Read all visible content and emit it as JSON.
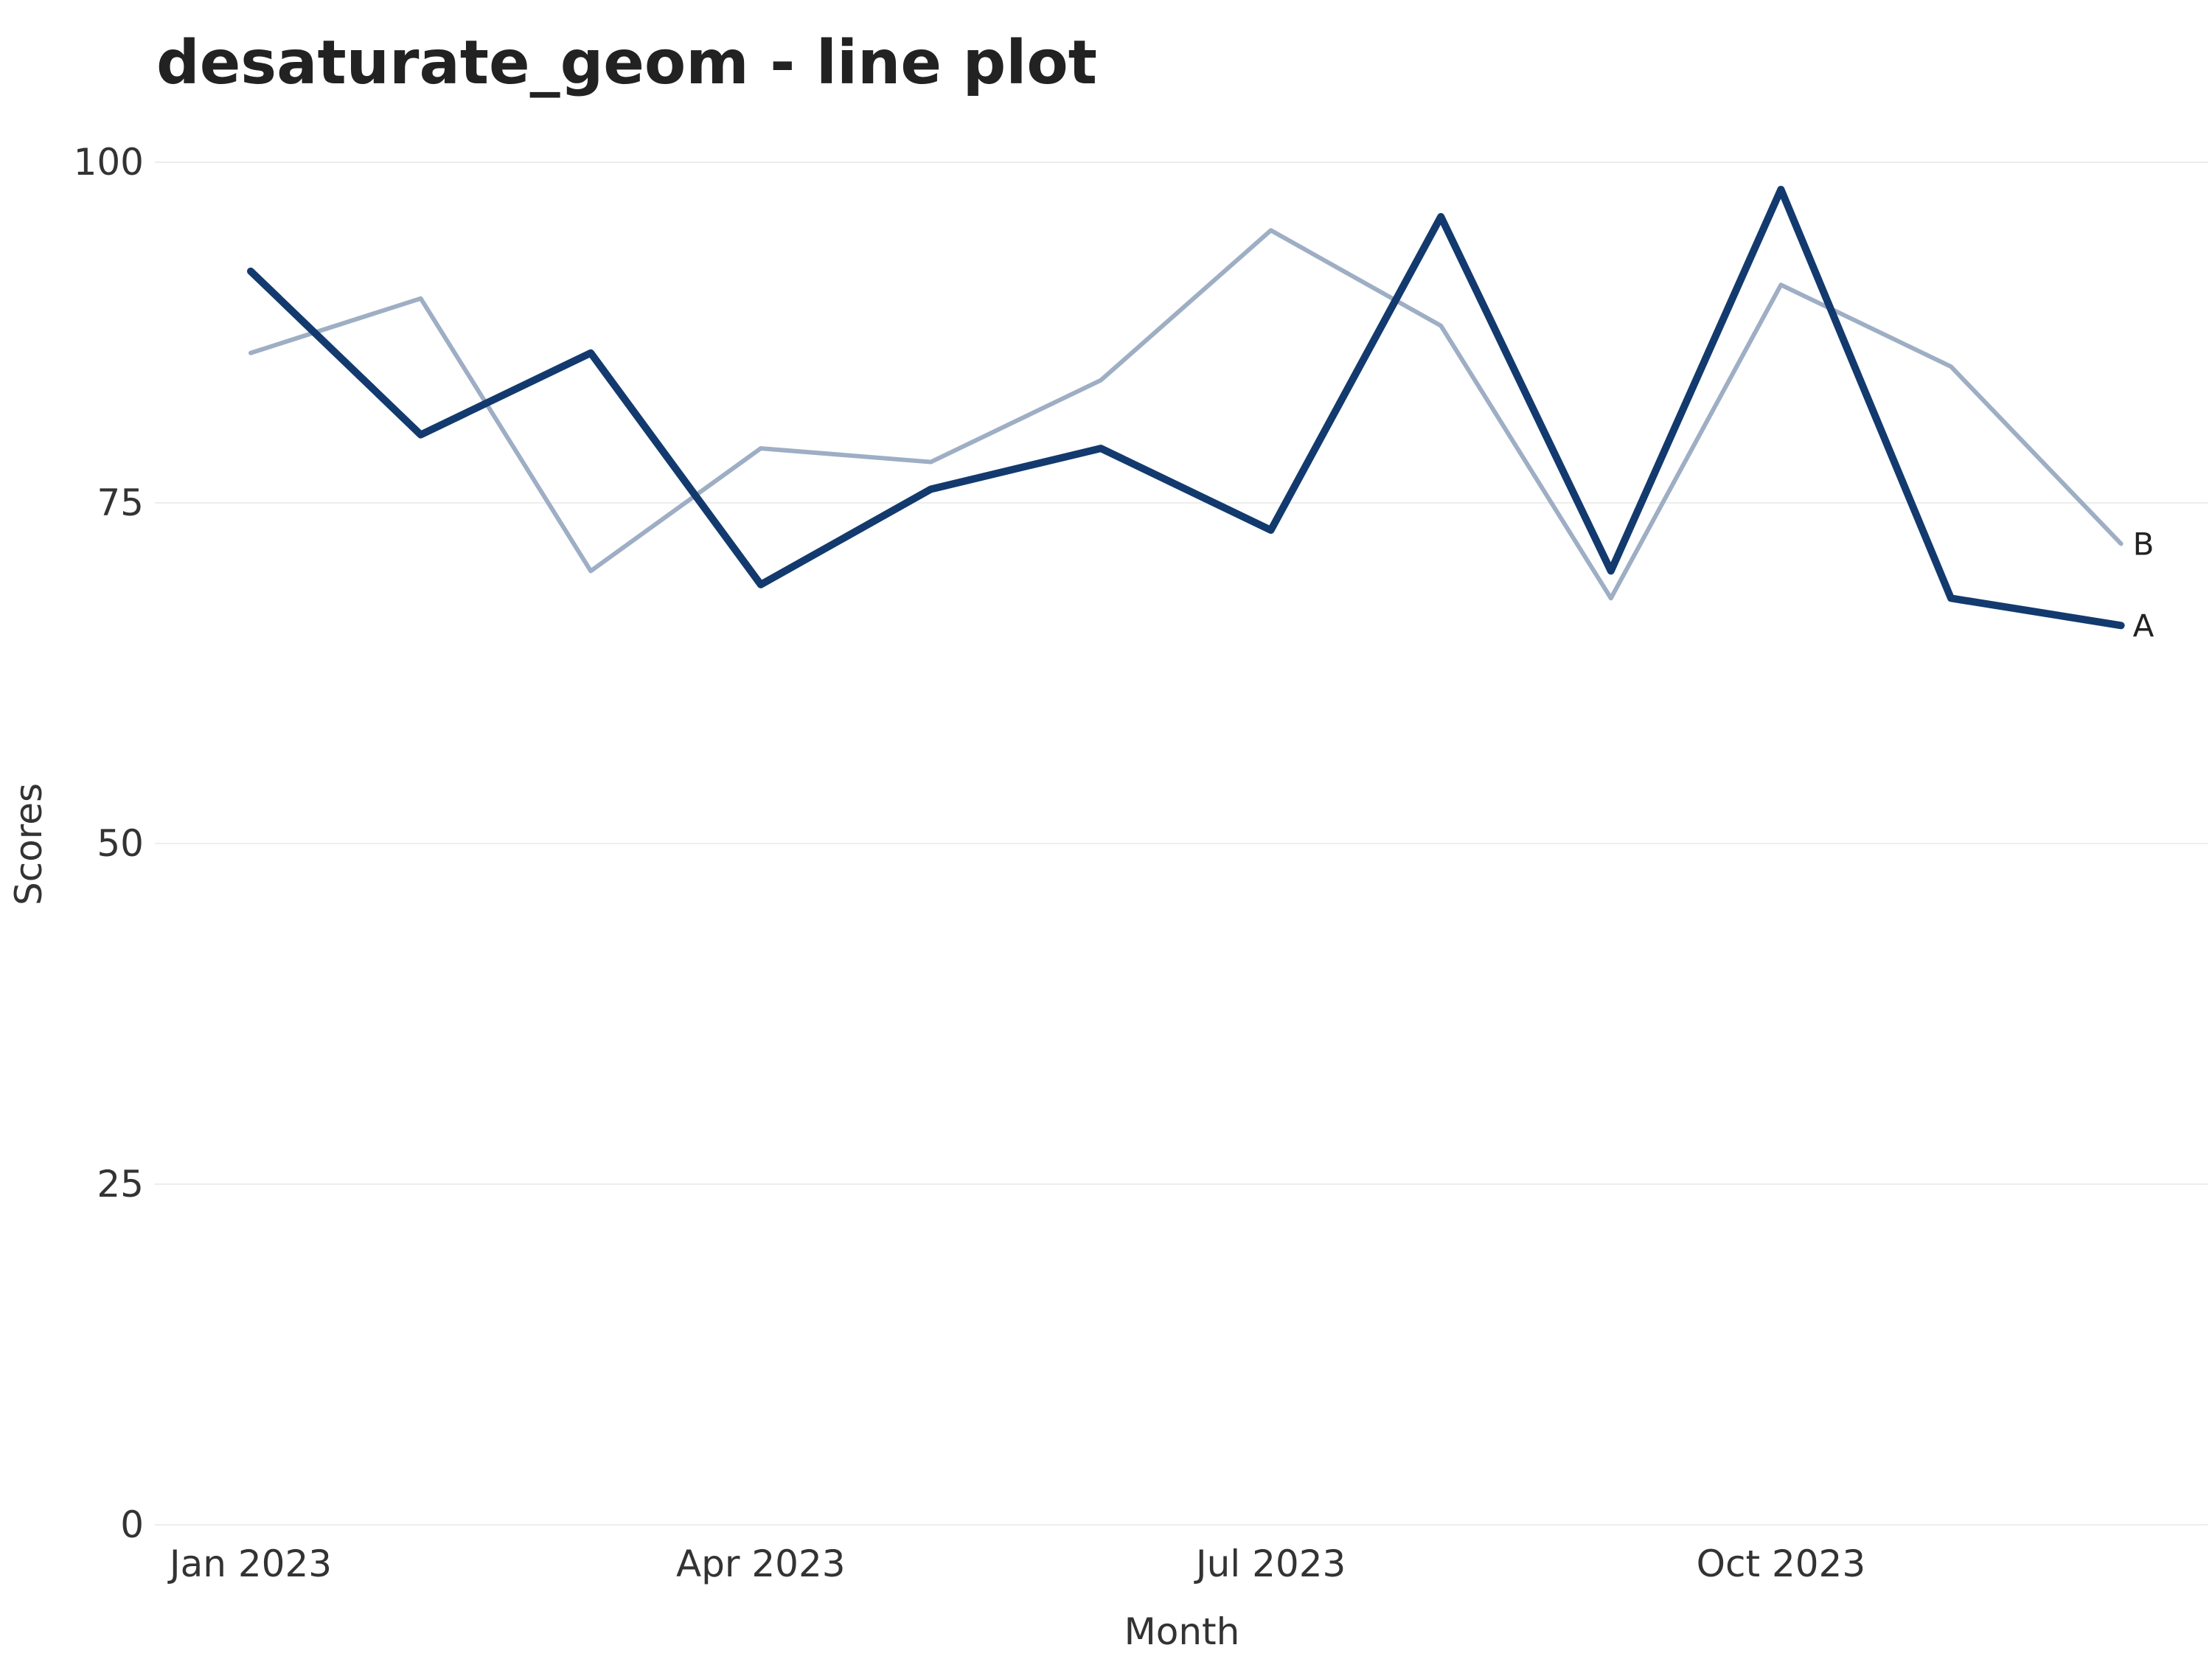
{
  "chart_data": {
    "type": "line",
    "title": "desaturate_geom - line plot",
    "xlabel": "Month",
    "ylabel": "Scores",
    "x": [
      "2023-01",
      "2023-02",
      "2023-03",
      "2023-04",
      "2023-05",
      "2023-06",
      "2023-07",
      "2023-08",
      "2023-09",
      "2023-10",
      "2023-11",
      "2023-12"
    ],
    "x_ticks": [
      "Jan 2023",
      "Apr 2023",
      "Jul 2023",
      "Oct 2023"
    ],
    "y_ticks": [
      "0",
      "25",
      "50",
      "75",
      "100"
    ],
    "ylim": [
      0,
      100
    ],
    "grid": true,
    "legend": "none",
    "series": [
      {
        "name": "A",
        "color": "#133a6e",
        "emphasis": "bold",
        "values": [
          92,
          80,
          86,
          69,
          76,
          79,
          73,
          96,
          70,
          98,
          68,
          66
        ]
      },
      {
        "name": "B",
        "color": "#9eaec4",
        "emphasis": "muted",
        "values": [
          86,
          90,
          70,
          79,
          78,
          84,
          95,
          88,
          68,
          91,
          85,
          72
        ]
      }
    ]
  }
}
